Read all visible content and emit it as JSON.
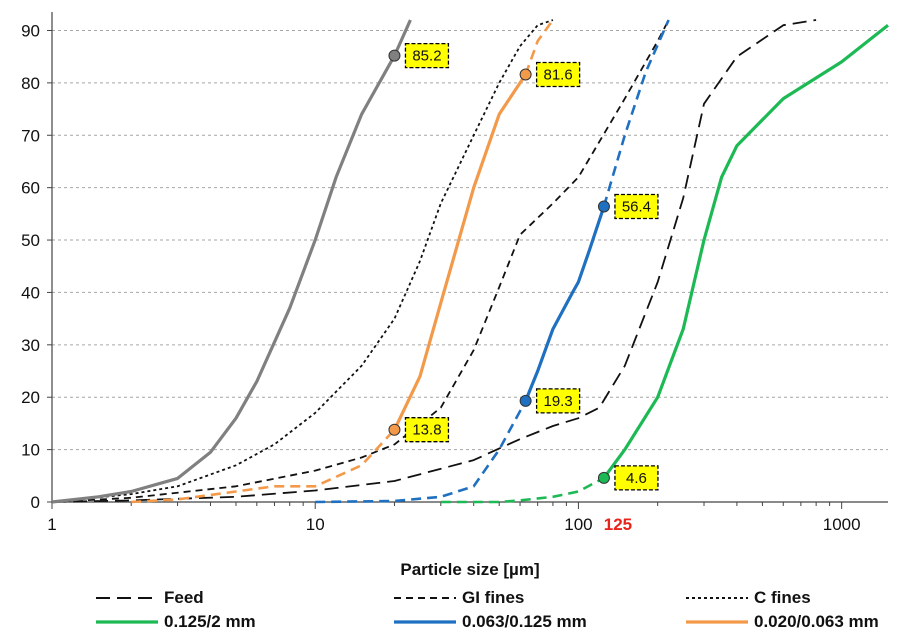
{
  "chart_data": {
    "type": "line",
    "xlabel": "Particle size [µm]",
    "xscale": "log",
    "xlim": [
      1,
      1500
    ],
    "ylim": [
      0,
      92
    ],
    "grid": "horizontal dashed",
    "x_ticks": [
      "1",
      "10",
      "100",
      "1000"
    ],
    "x_highlight_tick": {
      "label": "125",
      "value": 125,
      "color": "#e8241c"
    },
    "y_ticks": [
      "0",
      "10",
      "20",
      "30",
      "40",
      "50",
      "60",
      "70",
      "80",
      "90"
    ],
    "series": [
      {
        "name": "Feed",
        "color": "#111111",
        "dash": "long",
        "width": 1.8,
        "points": [
          [
            1,
            0
          ],
          [
            2,
            0.3
          ],
          [
            5,
            1
          ],
          [
            10,
            2.2
          ],
          [
            20,
            4
          ],
          [
            40,
            8
          ],
          [
            60,
            12
          ],
          [
            80,
            14.5
          ],
          [
            100,
            16
          ],
          [
            120,
            18
          ],
          [
            150,
            26
          ],
          [
            200,
            42
          ],
          [
            250,
            58
          ],
          [
            300,
            76
          ],
          [
            400,
            85
          ],
          [
            600,
            91
          ],
          [
            800,
            92
          ]
        ]
      },
      {
        "name": "GI fines",
        "color": "#111111",
        "dash": "short",
        "width": 1.8,
        "points": [
          [
            1,
            0
          ],
          [
            2,
            0.8
          ],
          [
            5,
            3
          ],
          [
            10,
            6
          ],
          [
            15,
            8.5
          ],
          [
            20,
            11
          ],
          [
            30,
            18
          ],
          [
            40,
            29
          ],
          [
            50,
            41
          ],
          [
            60,
            51
          ],
          [
            80,
            57
          ],
          [
            100,
            62
          ],
          [
            150,
            77
          ],
          [
            200,
            88
          ],
          [
            220,
            92
          ]
        ]
      },
      {
        "name": "C fines",
        "color": "#111111",
        "dash": "dot",
        "width": 1.8,
        "points": [
          [
            1,
            0
          ],
          [
            2,
            1.5
          ],
          [
            3,
            3
          ],
          [
            5,
            7
          ],
          [
            7,
            11
          ],
          [
            10,
            17
          ],
          [
            15,
            26
          ],
          [
            20,
            35
          ],
          [
            25,
            46
          ],
          [
            30,
            57
          ],
          [
            40,
            70
          ],
          [
            50,
            80
          ],
          [
            60,
            87
          ],
          [
            70,
            91
          ],
          [
            80,
            92
          ]
        ]
      },
      {
        "name": "0.125/2 mm",
        "color": "#1db954",
        "dash": "solid",
        "width": 3.2,
        "solid_from": 125,
        "points": [
          [
            30,
            0
          ],
          [
            50,
            0
          ],
          [
            60,
            0.3
          ],
          [
            80,
            1
          ],
          [
            100,
            2
          ],
          [
            125,
            4.6
          ],
          [
            150,
            10
          ],
          [
            200,
            20
          ],
          [
            250,
            33
          ],
          [
            300,
            50
          ],
          [
            350,
            62
          ],
          [
            400,
            68
          ],
          [
            600,
            77
          ],
          [
            1000,
            84
          ],
          [
            1500,
            91
          ]
        ]
      },
      {
        "name": "0.063/0.125 mm",
        "color": "#1f70c1",
        "dash": "solid",
        "width": 3.2,
        "solid_from": 63,
        "solid_to": 125,
        "points": [
          [
            10,
            0
          ],
          [
            20,
            0.2
          ],
          [
            30,
            1
          ],
          [
            40,
            3
          ],
          [
            50,
            10
          ],
          [
            63,
            19.3
          ],
          [
            70,
            25
          ],
          [
            80,
            33
          ],
          [
            95,
            40
          ],
          [
            100,
            42
          ],
          [
            110,
            48
          ],
          [
            125,
            56.4
          ],
          [
            150,
            70
          ],
          [
            180,
            82
          ],
          [
            220,
            92
          ]
        ]
      },
      {
        "name": "0.020/0.063 mm",
        "color": "#f39a4a",
        "dash": "solid",
        "width": 3.2,
        "solid_from": 20,
        "solid_to": 63,
        "points": [
          [
            2,
            0
          ],
          [
            3,
            0.5
          ],
          [
            5,
            2
          ],
          [
            7,
            3
          ],
          [
            10,
            3
          ],
          [
            15,
            7
          ],
          [
            20,
            13.8
          ],
          [
            25,
            24
          ],
          [
            30,
            38
          ],
          [
            40,
            60
          ],
          [
            50,
            74
          ],
          [
            63,
            81.6
          ],
          [
            70,
            88
          ],
          [
            80,
            92
          ]
        ]
      },
      {
        "name": "",
        "color": "#808080",
        "dash": "solid",
        "width": 3.2,
        "points": [
          [
            1,
            0
          ],
          [
            1.5,
            1
          ],
          [
            2,
            2
          ],
          [
            3,
            4.5
          ],
          [
            4,
            9.5
          ],
          [
            5,
            16
          ],
          [
            6,
            23
          ],
          [
            8,
            37
          ],
          [
            10,
            50
          ],
          [
            12,
            62
          ],
          [
            15,
            74
          ],
          [
            20,
            85.2
          ],
          [
            23,
            92
          ]
        ]
      }
    ],
    "annotations": [
      {
        "x": 20,
        "y": 85.2,
        "label": "85.2",
        "color": "#808080"
      },
      {
        "x": 63,
        "y": 81.6,
        "label": "81.6",
        "color": "#f39a4a"
      },
      {
        "x": 125,
        "y": 56.4,
        "label": "56.4",
        "color": "#1f70c1"
      },
      {
        "x": 63,
        "y": 19.3,
        "label": "19.3",
        "color": "#1f70c1"
      },
      {
        "x": 20,
        "y": 13.8,
        "label": "13.8",
        "color": "#f39a4a"
      },
      {
        "x": 125,
        "y": 4.6,
        "label": "4.6",
        "color": "#1db954"
      }
    ],
    "label_style": {
      "background": "#ffff00",
      "border": "#000000"
    },
    "legend_position": "bottom"
  }
}
